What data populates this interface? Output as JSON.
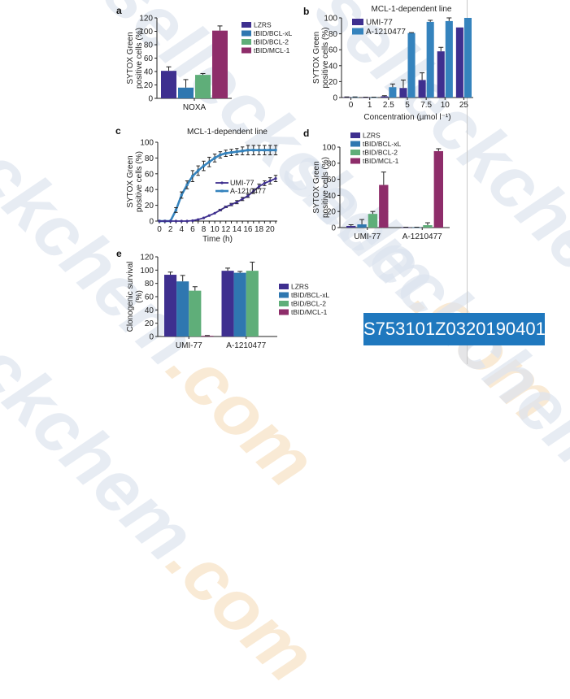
{
  "watermark": {
    "text": "selleckchem",
    "suffix": ".com"
  },
  "banner": {
    "text": "S753101Z0320190401"
  },
  "colors": {
    "LZRS": "#3e2f8f",
    "tBID/BCL-xL": "#2f77b0",
    "tBID/BCL-2": "#5fae79",
    "tBID/MCL-1": "#8e2d6a",
    "UMI-77": "#3e2f8f",
    "A-1210477": "#3583bd",
    "banner": "#1f78be"
  },
  "chart_data": [
    {
      "panel": "a",
      "type": "bar",
      "title": "",
      "ylabel": "SYTOX Green positive cells (%)",
      "ylabel_lines": [
        "SYTOX Green",
        "positive cells (%)"
      ],
      "xlabel": "",
      "ylim": [
        0,
        120
      ],
      "yticks": [
        0,
        20,
        40,
        60,
        80,
        100,
        120
      ],
      "categories": [
        "NOXA"
      ],
      "legend": [
        "LZRS",
        "tBID/BCL-xL",
        "tBID/BCL-2",
        "tBID/MCL-1"
      ],
      "legend_position": "right",
      "series": [
        {
          "name": "LZRS",
          "values": [
            41
          ],
          "errors": [
            6
          ]
        },
        {
          "name": "tBID/BCL-xL",
          "values": [
            16
          ],
          "errors": [
            12
          ]
        },
        {
          "name": "tBID/BCL-2",
          "values": [
            35
          ],
          "errors": [
            2
          ]
        },
        {
          "name": "tBID/MCL-1",
          "values": [
            101
          ],
          "errors": [
            7
          ]
        }
      ]
    },
    {
      "panel": "b",
      "type": "bar",
      "title": "MCL-1-dependent line",
      "ylabel": "SYTOX Green positive cells (%)",
      "ylabel_lines": [
        "SYTOX Green",
        "positive cells (%)"
      ],
      "xlabel": "Concentration (µmol l⁻¹)",
      "ylim": [
        0,
        100
      ],
      "yticks": [
        0,
        20,
        40,
        60,
        80,
        100
      ],
      "categories": [
        "0",
        "1",
        "2.5",
        "5",
        "7.5",
        "10",
        "25"
      ],
      "legend": [
        "UMI-77",
        "A-1210477"
      ],
      "legend_position": "top-left",
      "series": [
        {
          "name": "UMI-77",
          "values": [
            0.5,
            0.3,
            1.5,
            12,
            22,
            58,
            88
          ],
          "errors": [
            0.3,
            0.2,
            0.8,
            10,
            9,
            5,
            0
          ]
        },
        {
          "name": "A-1210477",
          "values": [
            0.5,
            0.3,
            13,
            81,
            95,
            96,
            100
          ],
          "errors": [
            0.3,
            0.2,
            4,
            0.5,
            2,
            4,
            0
          ]
        }
      ]
    },
    {
      "panel": "c",
      "type": "line",
      "title": "MCL-1-dependent line",
      "ylabel": "SYTOX Green positive cells (%)",
      "ylabel_lines": [
        "SYTOX Green",
        "positive cells (%)"
      ],
      "xlabel": "Time (h)",
      "xlim": [
        0,
        21
      ],
      "ylim": [
        0,
        100
      ],
      "xticks": [
        0,
        2,
        4,
        6,
        8,
        10,
        12,
        14,
        16,
        18,
        20
      ],
      "yticks": [
        0,
        20,
        40,
        60,
        80,
        100
      ],
      "legend": [
        "UMI-77",
        "A-1210477"
      ],
      "legend_position": "center-right",
      "x": [
        0,
        1,
        2,
        3,
        4,
        5,
        6,
        7,
        8,
        9,
        10,
        11,
        12,
        13,
        14,
        15,
        16,
        17,
        18,
        19,
        20,
        21
      ],
      "series": [
        {
          "name": "UMI-77",
          "values": [
            0,
            0,
            0,
            0,
            0,
            0,
            0.5,
            2,
            4,
            7,
            10,
            14,
            18,
            21,
            24,
            28,
            32,
            38,
            44,
            48,
            51,
            54
          ],
          "errors": [
            0,
            0,
            0,
            0,
            0,
            0,
            0,
            0,
            0,
            0,
            0,
            1,
            1,
            1.5,
            2,
            2,
            2,
            3,
            3,
            3,
            4,
            4
          ]
        },
        {
          "name": "A-1210477",
          "values": [
            0,
            0,
            0,
            14,
            33,
            46,
            57,
            64,
            70,
            75,
            80,
            84,
            86,
            87,
            88,
            89,
            90,
            90,
            90,
            90,
            90,
            90
          ],
          "errors": [
            0,
            0,
            0,
            3,
            4,
            5,
            7,
            6,
            6,
            6,
            5,
            4,
            4,
            4,
            4,
            5,
            6,
            6,
            6,
            6,
            6,
            6
          ]
        }
      ]
    },
    {
      "panel": "d",
      "type": "bar",
      "title": "",
      "ylabel": "SYTOX Green positive cells (%)",
      "ylabel_lines": [
        "SYTOX Green",
        "positive cells (%)"
      ],
      "xlabel": "",
      "ylim": [
        0,
        100
      ],
      "yticks": [
        0,
        20,
        40,
        60,
        80,
        100
      ],
      "categories": [
        "UMI-77",
        "A-1210477"
      ],
      "legend": [
        "LZRS",
        "tBID/BCL-xL",
        "tBID/BCL-2",
        "tBID/MCL-1"
      ],
      "legend_position": "top-left",
      "series": [
        {
          "name": "LZRS",
          "values": [
            2,
            0.3
          ],
          "errors": [
            1.5,
            0.2
          ]
        },
        {
          "name": "tBID/BCL-xL",
          "values": [
            4,
            0.3
          ],
          "errors": [
            6,
            0.2
          ]
        },
        {
          "name": "tBID/BCL-2",
          "values": [
            17,
            3
          ],
          "errors": [
            3,
            3
          ]
        },
        {
          "name": "tBID/MCL-1",
          "values": [
            53,
            95
          ],
          "errors": [
            16,
            3
          ]
        }
      ]
    },
    {
      "panel": "e",
      "type": "bar",
      "title": "",
      "ylabel": "Clonogenic survival (%)",
      "ylabel_lines": [
        "Clonogenic survival",
        "(%)"
      ],
      "xlabel": "",
      "ylim": [
        0,
        120
      ],
      "yticks": [
        0,
        20,
        40,
        60,
        80,
        100,
        120
      ],
      "categories": [
        "UMI-77",
        "A-1210477"
      ],
      "legend": [
        "LZRS",
        "tBID/BCL-xL",
        "tBID/BCL-2",
        "tBID/MCL-1"
      ],
      "legend_position": "right",
      "series": [
        {
          "name": "LZRS",
          "values": [
            93,
            99
          ],
          "errors": [
            4,
            4
          ]
        },
        {
          "name": "tBID/BCL-xL",
          "values": [
            83,
            96
          ],
          "errors": [
            9,
            2
          ]
        },
        {
          "name": "tBID/BCL-2",
          "values": [
            69,
            99
          ],
          "errors": [
            6,
            13
          ]
        },
        {
          "name": "tBID/MCL-1",
          "values": [
            1,
            null
          ],
          "errors": [
            0.5,
            null
          ]
        }
      ]
    }
  ]
}
